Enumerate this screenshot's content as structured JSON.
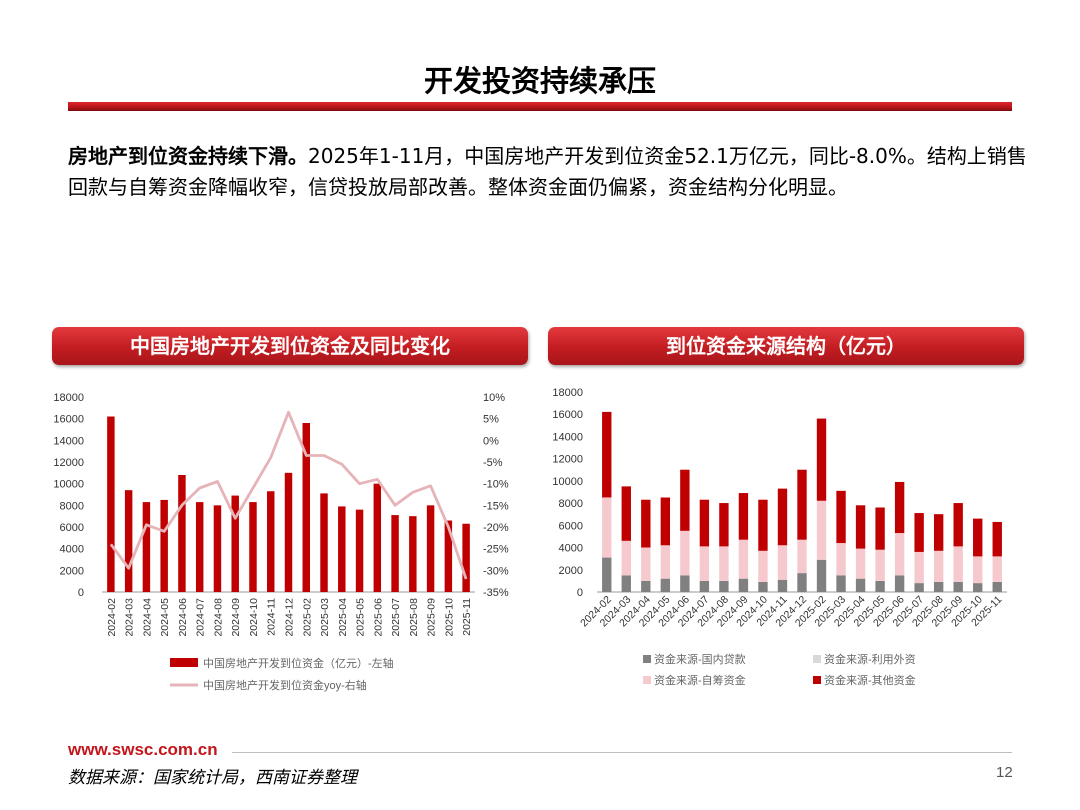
{
  "page": {
    "title": "开发投资持续承压",
    "lead_bold": "房地产到位资金持续下滑。",
    "lead_text": "2025年1-11月，中国房地产开发到位资金52.1万亿元，同比-8.0%。结构上销售回款与自筹资金降幅收窄，信贷投放局部改善。整体资金面仍偏紧，资金结构分化明显。",
    "footer_url": "www.swsc.com.cn",
    "source": "数据来源：国家统计局，西南证券整理",
    "page_number": "12"
  },
  "colors": {
    "brand_red": "#c3161c",
    "bar_red": "#c00000",
    "line_pink": "#e6b3b8",
    "gray": "#808080",
    "light_gray": "#d9d9d9",
    "pink": "#f6c9ce"
  },
  "chart_data": [
    {
      "type": "bar",
      "title": "中国房地产开发到位资金及同比变化",
      "categories": [
        "2024-02",
        "2024-03",
        "2024-04",
        "2024-05",
        "2024-06",
        "2024-07",
        "2024-08",
        "2024-09",
        "2024-10",
        "2024-11",
        "2024-12",
        "2025-02",
        "2025-03",
        "2025-04",
        "2025-05",
        "2025-06",
        "2025-07",
        "2025-08",
        "2025-09",
        "2025-10",
        "2025-11"
      ],
      "series": [
        {
          "name": "中国房地产开发到位资金（亿元）-左轴",
          "type": "bar",
          "axis": "left",
          "values": [
            16200,
            9400,
            8300,
            8500,
            10800,
            8300,
            8000,
            8900,
            8300,
            9300,
            11000,
            15600,
            9100,
            7900,
            7600,
            10000,
            7100,
            7000,
            8000,
            6600,
            6300
          ]
        },
        {
          "name": "中国房地产开发到位资金yoy-右轴",
          "type": "line",
          "axis": "right",
          "values": [
            -24,
            -29.5,
            -19.5,
            -21,
            -15,
            -11,
            -9.5,
            -18,
            -11,
            -4,
            6.5,
            -3.5,
            -3.5,
            -5.5,
            -10,
            -9,
            -15,
            -12,
            -10.5,
            -20,
            -32
          ]
        }
      ],
      "ylim_left": [
        0,
        18000
      ],
      "yticks_left": [
        "0",
        "2000",
        "4000",
        "6000",
        "8000",
        "10000",
        "12000",
        "14000",
        "16000",
        "18000"
      ],
      "ylim_right": [
        -35,
        10
      ],
      "yticks_right": [
        "-35%",
        "-30%",
        "-25%",
        "-20%",
        "-15%",
        "-10%",
        "-5%",
        "0%",
        "5%",
        "10%"
      ],
      "legend": "bottom"
    },
    {
      "type": "bar",
      "stacked": true,
      "title": "到位资金来源结构（亿元）",
      "categories": [
        "2024-02",
        "2024-03",
        "2024-04",
        "2024-05",
        "2024-06",
        "2024-07",
        "2024-08",
        "2024-09",
        "2024-10",
        "2024-11",
        "2024-12",
        "2025-02",
        "2025-03",
        "2025-04",
        "2025-05",
        "2025-06",
        "2025-07",
        "2025-08",
        "2025-09",
        "2025-10",
        "2025-11"
      ],
      "series": [
        {
          "name": "资金来源-国内贷款",
          "values": [
            3100,
            1500,
            1000,
            1200,
            1500,
            1000,
            1000,
            1200,
            900,
            1100,
            1700,
            2900,
            1500,
            1200,
            1000,
            1500,
            800,
            900,
            900,
            800,
            900
          ]
        },
        {
          "name": "资金来源-利用外资",
          "values": [
            10,
            5,
            5,
            5,
            5,
            5,
            5,
            5,
            5,
            5,
            5,
            10,
            5,
            5,
            5,
            5,
            5,
            5,
            5,
            5,
            5
          ]
        },
        {
          "name": "资金来源-自筹资金",
          "values": [
            5400,
            3100,
            3000,
            3000,
            4000,
            3100,
            3100,
            3500,
            2800,
            3100,
            3000,
            5300,
            2900,
            2700,
            2800,
            3800,
            2800,
            2800,
            3200,
            2400,
            2300
          ]
        },
        {
          "name": "资金来源-其他资金",
          "values": [
            7700,
            4900,
            4300,
            4300,
            5500,
            4200,
            3900,
            4200,
            4600,
            5100,
            6300,
            7400,
            4700,
            3900,
            3800,
            4600,
            3500,
            3300,
            3900,
            3400,
            3100
          ]
        }
      ],
      "ylim": [
        0,
        18000
      ],
      "yticks": [
        "0",
        "2000",
        "4000",
        "6000",
        "8000",
        "10000",
        "12000",
        "14000",
        "16000",
        "18000"
      ],
      "legend": "bottom"
    }
  ]
}
